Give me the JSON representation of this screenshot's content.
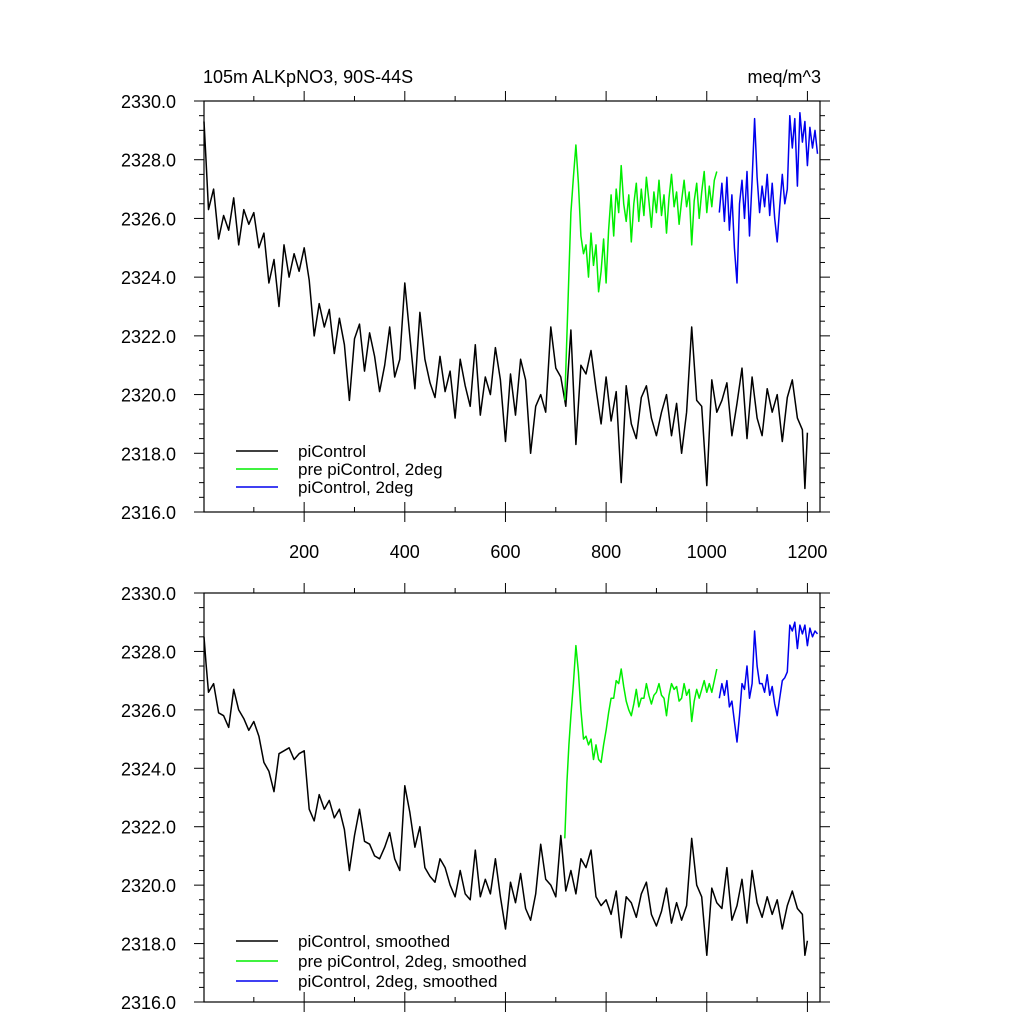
{
  "chart_data": [
    {
      "type": "line",
      "title": "105m ALKpNO3, 90S-44S",
      "units": "meq/m^3",
      "xlim": [
        1,
        1225
      ],
      "ylim": [
        2316,
        2330
      ],
      "x_ticks": [
        200,
        400,
        600,
        800,
        1000,
        1200
      ],
      "x_tick_labels": [
        "200",
        "400",
        "600",
        "800",
        "1000",
        "1200"
      ],
      "y_ticks": [
        2316,
        2318,
        2320,
        2322,
        2324,
        2326,
        2328,
        2330
      ],
      "y_tick_labels": [
        "2316.0",
        "2318.0",
        "2320.0",
        "2322.0",
        "2324.0",
        "2326.0",
        "2328.0",
        "2330.0"
      ],
      "legend_position": "bottom-left",
      "series": [
        {
          "name": "piControl",
          "color": "#000000",
          "x": [
            1,
            5,
            10,
            20,
            30,
            40,
            50,
            60,
            70,
            80,
            90,
            100,
            110,
            120,
            130,
            140,
            150,
            160,
            170,
            180,
            190,
            200,
            210,
            220,
            230,
            240,
            250,
            260,
            270,
            280,
            290,
            300,
            310,
            320,
            330,
            340,
            350,
            360,
            370,
            380,
            390,
            400,
            410,
            420,
            430,
            440,
            450,
            460,
            470,
            480,
            490,
            500,
            510,
            520,
            530,
            540,
            550,
            560,
            570,
            580,
            590,
            600,
            610,
            620,
            630,
            640,
            650,
            660,
            670,
            680,
            690,
            700,
            710,
            720,
            730,
            740,
            750,
            760,
            770,
            780,
            790,
            800,
            810,
            820,
            830,
            840,
            850,
            860,
            870,
            880,
            890,
            900,
            910,
            920,
            930,
            940,
            950,
            960,
            970,
            980,
            990,
            1000,
            1010,
            1020,
            1030,
            1040,
            1050,
            1060,
            1070,
            1080,
            1090,
            1100,
            1110,
            1120,
            1130,
            1140,
            1150,
            1160,
            1170,
            1180,
            1190,
            1195,
            1200
          ],
          "y": [
            2329.3,
            2328.0,
            2326.3,
            2327.0,
            2325.3,
            2326.1,
            2325.6,
            2326.7,
            2325.1,
            2326.3,
            2325.8,
            2326.2,
            2325.0,
            2325.5,
            2323.8,
            2324.6,
            2323.0,
            2325.1,
            2324.0,
            2324.8,
            2324.2,
            2325.0,
            2323.9,
            2322.0,
            2323.1,
            2322.3,
            2322.9,
            2321.4,
            2322.6,
            2321.7,
            2319.8,
            2321.9,
            2322.4,
            2320.8,
            2322.1,
            2321.3,
            2320.1,
            2321.0,
            2322.3,
            2320.6,
            2321.2,
            2323.8,
            2322.0,
            2320.2,
            2322.8,
            2321.2,
            2320.4,
            2319.9,
            2321.3,
            2320.1,
            2320.8,
            2319.2,
            2321.2,
            2320.3,
            2319.6,
            2321.7,
            2319.3,
            2320.6,
            2320.0,
            2321.6,
            2320.5,
            2318.4,
            2320.7,
            2319.3,
            2321.2,
            2320.5,
            2318.0,
            2319.6,
            2320.0,
            2319.4,
            2322.3,
            2320.9,
            2320.6,
            2319.6,
            2322.2,
            2318.3,
            2321.0,
            2320.7,
            2321.5,
            2320.2,
            2319.0,
            2320.6,
            2319.1,
            2320.1,
            2317.0,
            2320.3,
            2319.0,
            2318.5,
            2319.9,
            2320.3,
            2319.2,
            2318.6,
            2319.4,
            2320.0,
            2318.6,
            2319.7,
            2318.0,
            2319.4,
            2322.3,
            2319.8,
            2319.6,
            2316.9,
            2320.5,
            2319.4,
            2319.8,
            2320.4,
            2318.6,
            2319.7,
            2320.9,
            2318.5,
            2320.6,
            2319.2,
            2318.6,
            2320.2,
            2319.4,
            2320.0,
            2318.4,
            2319.9,
            2320.5,
            2319.2,
            2318.8,
            2316.8,
            2318.7
          ]
        },
        {
          "name": "pre piControl, 2deg",
          "color": "#00ee00",
          "x": [
            718,
            722,
            726,
            730,
            735,
            740,
            745,
            750,
            755,
            760,
            765,
            770,
            775,
            780,
            785,
            790,
            795,
            800,
            805,
            810,
            815,
            820,
            825,
            830,
            835,
            840,
            845,
            850,
            855,
            860,
            865,
            870,
            875,
            880,
            885,
            890,
            895,
            900,
            905,
            910,
            915,
            920,
            925,
            930,
            935,
            940,
            945,
            950,
            955,
            960,
            965,
            970,
            975,
            980,
            985,
            990,
            995,
            1000,
            1005,
            1010,
            1015,
            1020
          ],
          "y": [
            2319.8,
            2322.0,
            2324.1,
            2326.2,
            2327.4,
            2328.5,
            2327.2,
            2325.4,
            2324.8,
            2325.1,
            2324.0,
            2325.5,
            2324.4,
            2325.1,
            2323.5,
            2324.2,
            2325.3,
            2323.8,
            2325.6,
            2326.8,
            2325.4,
            2327.0,
            2326.2,
            2327.8,
            2326.5,
            2325.9,
            2326.8,
            2325.2,
            2326.5,
            2327.2,
            2325.9,
            2327.0,
            2326.1,
            2327.4,
            2326.6,
            2325.7,
            2326.9,
            2326.2,
            2327.3,
            2326.1,
            2326.8,
            2325.5,
            2326.7,
            2327.5,
            2326.4,
            2326.9,
            2325.8,
            2326.6,
            2327.3,
            2326.4,
            2326.9,
            2325.1,
            2326.6,
            2327.2,
            2326.0,
            2326.9,
            2327.6,
            2326.2,
            2327.1,
            2326.4,
            2327.3,
            2327.6
          ]
        },
        {
          "name": "piControl, 2deg",
          "color": "#0000ee",
          "x": [
            1025,
            1030,
            1035,
            1040,
            1045,
            1050,
            1055,
            1060,
            1065,
            1070,
            1075,
            1080,
            1085,
            1090,
            1095,
            1100,
            1105,
            1110,
            1115,
            1120,
            1125,
            1130,
            1135,
            1140,
            1145,
            1150,
            1155,
            1160,
            1165,
            1170,
            1175,
            1180,
            1185,
            1190,
            1195,
            1200,
            1205,
            1210,
            1215,
            1220
          ],
          "y": [
            2326.2,
            2327.2,
            2325.9,
            2327.4,
            2325.6,
            2326.8,
            2325.0,
            2323.8,
            2326.5,
            2327.3,
            2326.0,
            2327.6,
            2325.4,
            2327.3,
            2329.4,
            2327.4,
            2326.2,
            2327.1,
            2326.4,
            2327.5,
            2326.1,
            2327.2,
            2326.0,
            2325.2,
            2326.4,
            2327.5,
            2326.5,
            2327.0,
            2329.5,
            2328.4,
            2329.4,
            2327.1,
            2329.6,
            2328.6,
            2329.3,
            2327.8,
            2329.1,
            2328.4,
            2329.0,
            2328.2
          ]
        }
      ]
    },
    {
      "type": "line",
      "title": "",
      "xlim": [
        1,
        1225
      ],
      "ylim": [
        2316,
        2330
      ],
      "y_ticks": [
        2316,
        2318,
        2320,
        2322,
        2324,
        2326,
        2328,
        2330
      ],
      "y_tick_labels": [
        "2316.0",
        "2318.0",
        "2320.0",
        "2322.0",
        "2324.0",
        "2326.0",
        "2328.0",
        "2330.0"
      ],
      "legend_position": "bottom-left",
      "series": [
        {
          "name": "piControl, smoothed",
          "color": "#000000",
          "x": [
            1,
            5,
            10,
            20,
            30,
            40,
            50,
            60,
            70,
            80,
            90,
            100,
            110,
            120,
            130,
            140,
            150,
            160,
            170,
            180,
            190,
            200,
            210,
            220,
            230,
            240,
            250,
            260,
            270,
            280,
            290,
            300,
            310,
            320,
            330,
            340,
            350,
            360,
            370,
            380,
            390,
            400,
            410,
            420,
            430,
            440,
            450,
            460,
            470,
            480,
            490,
            500,
            510,
            520,
            530,
            540,
            550,
            560,
            570,
            580,
            590,
            600,
            610,
            620,
            630,
            640,
            650,
            660,
            670,
            680,
            690,
            700,
            710,
            720,
            730,
            740,
            750,
            760,
            770,
            780,
            790,
            800,
            810,
            820,
            830,
            840,
            850,
            860,
            870,
            880,
            890,
            900,
            910,
            920,
            930,
            940,
            950,
            960,
            970,
            980,
            990,
            1000,
            1010,
            1020,
            1030,
            1040,
            1050,
            1060,
            1070,
            1080,
            1090,
            1100,
            1110,
            1120,
            1130,
            1140,
            1150,
            1160,
            1170,
            1180,
            1190,
            1195,
            1200
          ],
          "y": [
            2328.5,
            2327.6,
            2326.6,
            2326.9,
            2325.9,
            2325.8,
            2325.4,
            2326.7,
            2326.0,
            2325.7,
            2325.3,
            2325.6,
            2325.1,
            2324.2,
            2323.9,
            2323.2,
            2324.5,
            2324.6,
            2324.7,
            2324.3,
            2324.5,
            2324.6,
            2322.6,
            2322.2,
            2323.1,
            2322.6,
            2322.9,
            2322.3,
            2322.6,
            2321.9,
            2320.5,
            2321.7,
            2322.6,
            2321.5,
            2321.4,
            2321.0,
            2320.9,
            2321.3,
            2321.8,
            2320.9,
            2320.5,
            2323.4,
            2322.5,
            2321.3,
            2322.0,
            2320.6,
            2320.3,
            2320.1,
            2320.9,
            2320.6,
            2320.0,
            2319.6,
            2320.5,
            2319.7,
            2319.5,
            2321.2,
            2319.6,
            2320.2,
            2319.7,
            2320.9,
            2319.6,
            2318.5,
            2320.1,
            2319.4,
            2320.4,
            2319.2,
            2318.8,
            2319.7,
            2321.4,
            2320.2,
            2320.0,
            2319.6,
            2321.7,
            2319.8,
            2320.5,
            2319.7,
            2320.9,
            2320.6,
            2321.2,
            2319.6,
            2319.3,
            2319.5,
            2319.0,
            2319.8,
            2318.2,
            2319.6,
            2319.4,
            2318.9,
            2319.7,
            2320.1,
            2319.0,
            2318.6,
            2319.1,
            2319.9,
            2318.7,
            2319.4,
            2318.8,
            2319.3,
            2321.6,
            2320.0,
            2319.6,
            2317.6,
            2319.9,
            2319.4,
            2319.2,
            2320.6,
            2318.8,
            2319.3,
            2320.2,
            2318.7,
            2320.5,
            2319.4,
            2318.9,
            2319.6,
            2319.0,
            2319.5,
            2318.5,
            2319.3,
            2319.8,
            2319.2,
            2319.0,
            2317.6,
            2318.1
          ]
        },
        {
          "name": "pre piControl, 2deg, smoothed",
          "color": "#00ee00",
          "x": [
            718,
            722,
            726,
            730,
            735,
            740,
            745,
            750,
            755,
            760,
            765,
            770,
            775,
            780,
            785,
            790,
            795,
            800,
            805,
            810,
            815,
            820,
            825,
            830,
            835,
            840,
            845,
            850,
            855,
            860,
            865,
            870,
            875,
            880,
            885,
            890,
            895,
            900,
            905,
            910,
            915,
            920,
            925,
            930,
            935,
            940,
            945,
            950,
            955,
            960,
            965,
            970,
            975,
            980,
            985,
            990,
            995,
            1000,
            1005,
            1010,
            1015,
            1020
          ],
          "y": [
            2321.6,
            2323.5,
            2324.8,
            2325.8,
            2326.9,
            2328.2,
            2327.3,
            2326.0,
            2325.0,
            2325.1,
            2324.8,
            2325.0,
            2324.3,
            2324.8,
            2324.3,
            2324.2,
            2324.8,
            2325.3,
            2325.9,
            2326.4,
            2326.4,
            2327.0,
            2326.9,
            2327.4,
            2326.8,
            2326.3,
            2326.0,
            2325.8,
            2326.2,
            2326.7,
            2326.1,
            2326.4,
            2326.4,
            2326.9,
            2326.5,
            2326.2,
            2326.5,
            2326.6,
            2326.9,
            2326.5,
            2326.4,
            2325.8,
            2326.5,
            2326.9,
            2326.7,
            2326.8,
            2326.3,
            2326.4,
            2326.9,
            2326.5,
            2326.7,
            2325.6,
            2326.3,
            2326.7,
            2326.4,
            2326.7,
            2327.0,
            2326.6,
            2326.9,
            2326.6,
            2327.0,
            2327.4
          ]
        },
        {
          "name": "piControl, 2deg, smoothed",
          "color": "#0000ee",
          "x": [
            1025,
            1030,
            1035,
            1040,
            1045,
            1050,
            1055,
            1060,
            1065,
            1070,
            1075,
            1080,
            1085,
            1090,
            1095,
            1100,
            1105,
            1110,
            1115,
            1120,
            1125,
            1130,
            1135,
            1140,
            1145,
            1150,
            1155,
            1160,
            1165,
            1170,
            1175,
            1180,
            1185,
            1190,
            1195,
            1200,
            1205,
            1210,
            1215,
            1220
          ],
          "y": [
            2326.4,
            2326.9,
            2326.5,
            2327.0,
            2326.1,
            2326.3,
            2325.6,
            2324.9,
            2325.8,
            2326.9,
            2326.7,
            2327.5,
            2326.4,
            2326.9,
            2328.7,
            2327.5,
            2326.9,
            2326.9,
            2326.6,
            2327.2,
            2326.5,
            2326.8,
            2326.2,
            2325.8,
            2326.4,
            2327.0,
            2327.1,
            2327.3,
            2328.9,
            2328.7,
            2329.0,
            2328.1,
            2328.9,
            2328.6,
            2328.9,
            2328.2,
            2328.8,
            2328.5,
            2328.7,
            2328.6
          ]
        }
      ]
    }
  ]
}
